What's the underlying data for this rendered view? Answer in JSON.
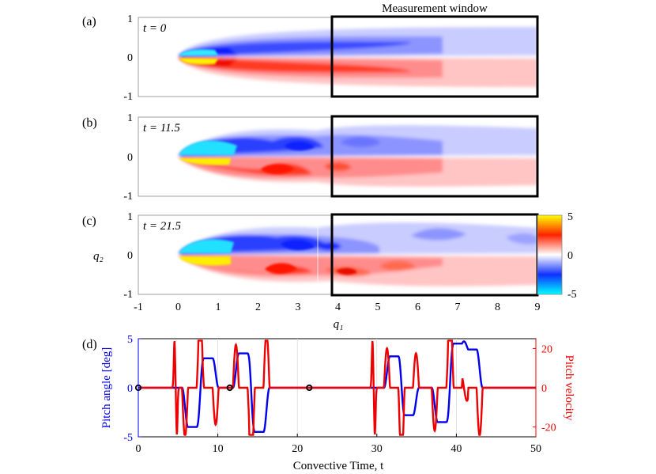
{
  "window_label": "Measurement window",
  "panels": [
    {
      "label": "(a)",
      "time_label": "t = 0"
    },
    {
      "label": "(b)",
      "time_label": "t = 11.5"
    },
    {
      "label": "(c)",
      "time_label": "t = 21.5"
    },
    {
      "label": "(d)"
    }
  ],
  "field_axes": {
    "y_label": "q₂",
    "x_label": "q₁",
    "y_ticks": [
      "1",
      "0",
      "-1"
    ],
    "x_ticks": [
      "-1",
      "0",
      "1",
      "2",
      "3",
      "4",
      "5",
      "6",
      "7",
      "8",
      "9"
    ],
    "x_range": [
      -1,
      9
    ],
    "y_range": [
      -1,
      1
    ]
  },
  "colorbar": {
    "ticks": [
      "5",
      "0",
      "-5"
    ],
    "range": [
      -5,
      5
    ],
    "colors": {
      "max": "#ffff00",
      "upper": "#ff2200",
      "zero": "#ffffff",
      "lower": "#1030ff",
      "min": "#00ffff"
    }
  },
  "chart_data": {
    "type": "line",
    "xlabel": "Convective Time, t",
    "ylabel_left": "Pitch angle [deg]",
    "ylabel_right": "Pitch velocity",
    "x_ticks": [
      "0",
      "10",
      "20",
      "30",
      "40",
      "50"
    ],
    "y_left_ticks": [
      "5",
      "0",
      "-5"
    ],
    "y_right_ticks": [
      "20",
      "0",
      "-20"
    ],
    "xlim": [
      0,
      50
    ],
    "ylim_left": [
      -5,
      5
    ],
    "ylim_right": [
      -25,
      25
    ],
    "markers": [
      0,
      11.5,
      21.5
    ],
    "pitch_angle_pulses": [
      {
        "t": 6.8,
        "amp": -4.0
      },
      {
        "t": 8.8,
        "amp": 3.0
      },
      {
        "t": 13.2,
        "amp": 3.5
      },
      {
        "t": 15.2,
        "amp": -4.5
      },
      {
        "t": 32.2,
        "amp": 3.2
      },
      {
        "t": 34.0,
        "amp": -2.8
      },
      {
        "t": 38.2,
        "amp": -3.5
      },
      {
        "t": 40.2,
        "amp": 4.5
      },
      {
        "t": 42.0,
        "amp": 3.9
      }
    ],
    "pitch_velocity_spikes": [
      {
        "t": 4.7,
        "amp": 24
      },
      {
        "t": 29.6,
        "amp": 24
      }
    ],
    "series": [
      {
        "name": "Pitch angle",
        "axis": "left",
        "color": "#0000ee"
      },
      {
        "name": "Pitch velocity",
        "axis": "right",
        "color": "#ee0000"
      }
    ]
  }
}
